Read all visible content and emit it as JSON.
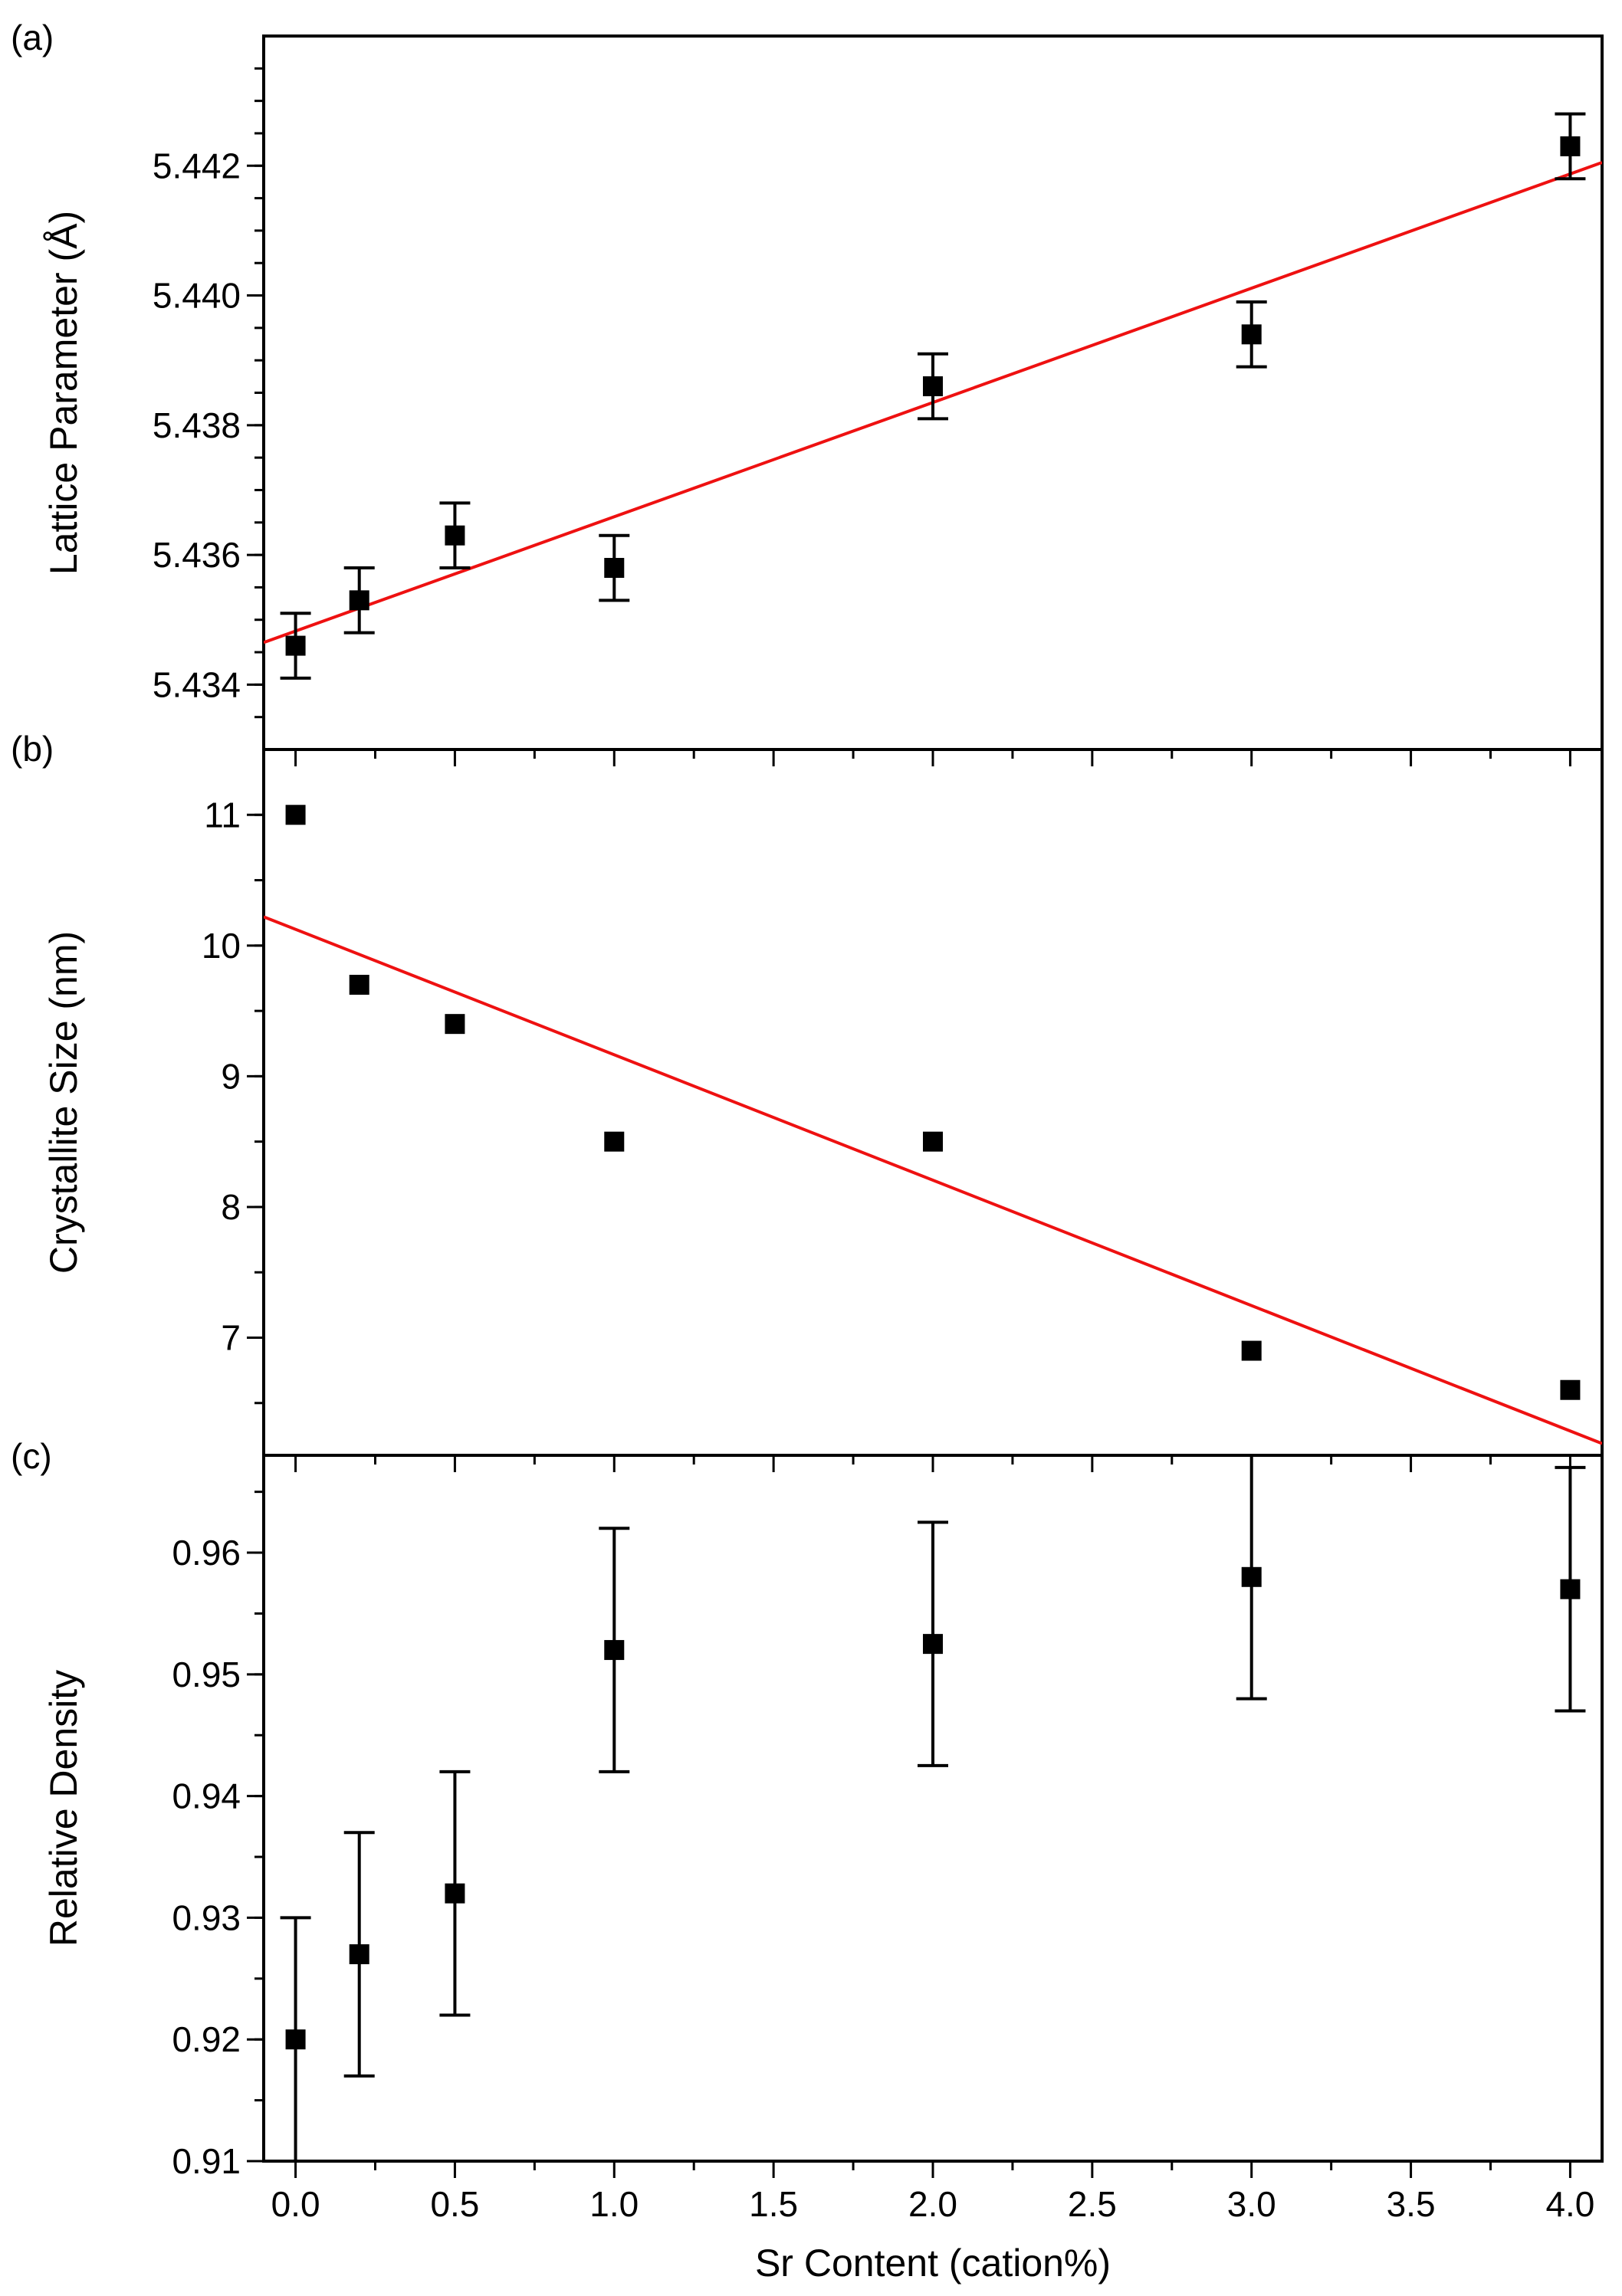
{
  "chart_data": [
    {
      "panel_label": "(a)",
      "type": "scatter",
      "ylabel": "Lattice Parameter (Å)",
      "xlabel": "Sr Content (cation%)",
      "xlim": [
        -0.1,
        4.1
      ],
      "ylim": [
        5.433,
        5.444
      ],
      "y_ticks": [
        5.434,
        5.436,
        5.438,
        5.44,
        5.442
      ],
      "y_tick_labels": [
        "5.434",
        "5.436",
        "5.438",
        "5.440",
        "5.442"
      ],
      "y_minor_step": 0.0005,
      "x": [
        0.0,
        0.2,
        0.5,
        1.0,
        2.0,
        3.0,
        4.0
      ],
      "y": [
        5.4346,
        5.4353,
        5.4363,
        5.4358,
        5.4386,
        5.4394,
        5.4423
      ],
      "yerr": [
        0.0005,
        0.0005,
        0.0005,
        0.0005,
        0.0005,
        0.0005,
        0.0005
      ],
      "fit_line": {
        "x": [
          -0.1,
          4.1
        ],
        "y": [
          5.43465,
          5.44205
        ],
        "color": "#ee1111"
      }
    },
    {
      "panel_label": "(b)",
      "type": "scatter",
      "ylabel": "Crystallite Size (nm)",
      "xlabel": "Sr Content (cation%)",
      "xlim": [
        -0.1,
        4.1
      ],
      "ylim": [
        6.1,
        11.5
      ],
      "y_ticks": [
        7,
        8,
        9,
        10,
        11
      ],
      "y_tick_labels": [
        "7",
        "8",
        "9",
        "10",
        "11"
      ],
      "y_minor_step": 0.5,
      "x": [
        0.0,
        0.2,
        0.5,
        1.0,
        2.0,
        3.0,
        4.0
      ],
      "y": [
        11.0,
        9.7,
        9.4,
        8.5,
        8.5,
        6.9,
        6.6
      ],
      "yerr": null,
      "fit_line": {
        "x": [
          -0.1,
          4.1
        ],
        "y": [
          10.22,
          6.19
        ],
        "color": "#ee1111"
      }
    },
    {
      "panel_label": "(c)",
      "type": "scatter",
      "ylabel": "Relative Density",
      "xlabel": "Sr Content (cation%)",
      "xlim": [
        -0.1,
        4.1
      ],
      "ylim": [
        0.91,
        0.968
      ],
      "y_ticks": [
        0.91,
        0.92,
        0.93,
        0.94,
        0.95,
        0.96
      ],
      "y_tick_labels": [
        "0.91",
        "0.92",
        "0.93",
        "0.94",
        "0.95",
        "0.96"
      ],
      "y_minor_step": 0.005,
      "x": [
        0.0,
        0.2,
        0.5,
        1.0,
        2.0,
        3.0,
        4.0
      ],
      "y": [
        0.92,
        0.927,
        0.932,
        0.952,
        0.9525,
        0.958,
        0.957
      ],
      "yerr": [
        0.01,
        0.01,
        0.01,
        0.01,
        0.01,
        0.01,
        0.01
      ],
      "fit_line": null,
      "x_ticks": [
        0.0,
        0.5,
        1.0,
        1.5,
        2.0,
        2.5,
        3.0,
        3.5,
        4.0
      ],
      "x_tick_labels": [
        "0.0",
        "0.5",
        "1.0",
        "1.5",
        "2.0",
        "2.5",
        "3.0",
        "3.5",
        "4.0"
      ],
      "x_minor_step": 0.25
    }
  ],
  "colors": {
    "axis": "#000000",
    "marker": "#000000",
    "fit": "#ee1111"
  }
}
